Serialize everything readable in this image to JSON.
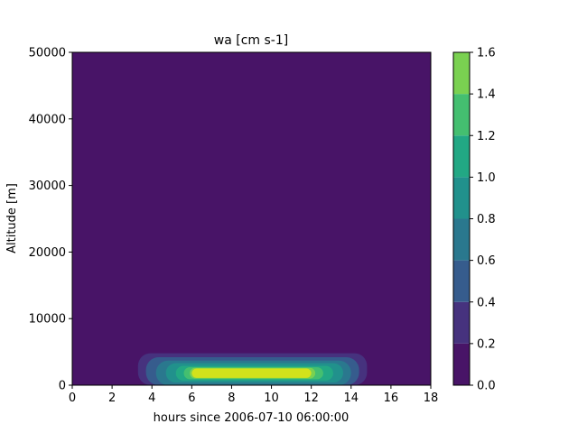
{
  "chart_data": {
    "type": "contourf",
    "title": "wa [cm s-1]",
    "xlabel": "hours since 2006-07-10 06:00:00",
    "ylabel": "Altitude [m]",
    "xlim": [
      0,
      18
    ],
    "ylim": [
      0,
      50000
    ],
    "xticks": [
      0,
      2,
      4,
      6,
      8,
      10,
      12,
      14,
      16,
      18
    ],
    "yticks": [
      0,
      10000,
      20000,
      30000,
      40000,
      50000
    ],
    "colorbar": {
      "levels": [
        0.0,
        0.2,
        0.4,
        0.6,
        0.8,
        1.0,
        1.2,
        1.4,
        1.6
      ],
      "tick_labels": [
        "0.0",
        "0.2",
        "0.4",
        "0.6",
        "0.8",
        "1.0",
        "1.2",
        "1.4",
        "1.6"
      ],
      "colors": [
        "#481467",
        "#46327e",
        "#365c8d",
        "#2a788e",
        "#21918c",
        "#22a884",
        "#44bf70",
        "#7ad151",
        "#d2e21b"
      ]
    },
    "contour_bands": [
      {
        "level_index": 1,
        "x": [
          3.3,
          14.8
        ],
        "y": [
          0,
          4800
        ]
      },
      {
        "level_index": 2,
        "x": [
          3.7,
          14.4
        ],
        "y": [
          0,
          4200
        ]
      },
      {
        "level_index": 3,
        "x": [
          4.2,
          14.0
        ],
        "y": [
          0,
          3700
        ]
      },
      {
        "level_index": 4,
        "x": [
          4.7,
          13.6
        ],
        "y": [
          400,
          3300
        ]
      },
      {
        "level_index": 5,
        "x": [
          5.2,
          13.1
        ],
        "y": [
          700,
          2900
        ]
      },
      {
        "level_index": 6,
        "x": [
          5.6,
          12.6
        ],
        "y": [
          900,
          2700
        ]
      },
      {
        "level_index": 7,
        "x": [
          5.9,
          12.2
        ],
        "y": [
          1000,
          2600
        ]
      },
      {
        "level_index": 8,
        "x": [
          6.0,
          12.0
        ],
        "y": [
          1100,
          2500
        ]
      }
    ]
  }
}
